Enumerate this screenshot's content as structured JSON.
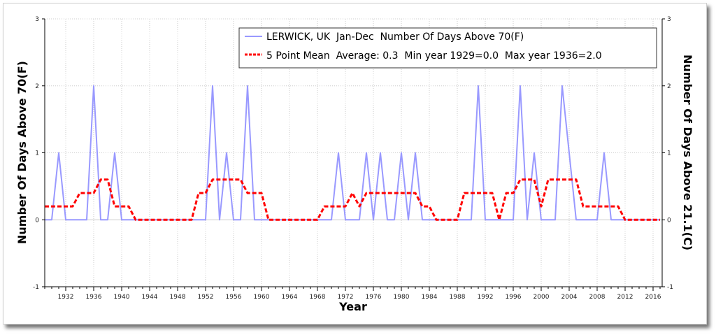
{
  "chart_data": {
    "type": "line",
    "xlabel": "Year",
    "ylabel": "Number Of Days Above 70(F)",
    "ylabel_right": "Number Of Days Above 21.1(C)",
    "xlim": [
      1929,
      2017.3
    ],
    "ylim": [
      -1,
      3
    ],
    "yticks": [
      "-1",
      "0",
      "1",
      "2",
      "3"
    ],
    "xticks": [
      "1932",
      "1936",
      "1940",
      "1944",
      "1948",
      "1952",
      "1956",
      "1960",
      "1964",
      "1968",
      "1972",
      "1976",
      "1980",
      "1984",
      "1988",
      "1992",
      "1996",
      "2000",
      "2004",
      "2008",
      "2012",
      "2016"
    ],
    "grid": true,
    "legend_position": "top-right",
    "x_start": 1929,
    "series": [
      {
        "name": "LERWICK, UK  Jan-Dec  Number Of Days Above 70(F)",
        "color": "#9999ff",
        "style": "solid",
        "values": [
          0,
          0,
          1,
          0,
          0,
          0,
          0,
          2,
          0,
          0,
          1,
          0,
          0,
          0,
          0,
          0,
          0,
          0,
          0,
          0,
          0,
          0,
          0,
          0,
          2,
          0,
          1,
          0,
          0,
          2,
          0,
          0,
          0,
          0,
          0,
          0,
          0,
          0,
          0,
          0,
          0,
          0,
          1,
          0,
          0,
          0,
          1,
          0,
          1,
          0,
          0,
          1,
          0,
          1,
          0,
          0,
          0,
          0,
          0,
          0,
          0,
          0,
          2,
          0,
          0,
          0,
          0,
          0,
          2,
          0,
          1,
          0,
          0,
          0,
          2,
          1,
          0,
          0,
          0,
          0,
          1,
          0,
          0,
          0,
          0,
          0,
          0,
          0,
          0
        ]
      },
      {
        "name": "5 Point Mean  Average: 0.3  Min year 1929=0.0  Max year 1936=2.0",
        "color": "#ff0000",
        "style": "dashed",
        "values": [
          0.2,
          0.2,
          0.2,
          0.2,
          0.2,
          0.4,
          0.4,
          0.4,
          0.6,
          0.6,
          0.2,
          0.2,
          0.2,
          0,
          0,
          0,
          0,
          0,
          0,
          0,
          0,
          0,
          0.4,
          0.4,
          0.6,
          0.6,
          0.6,
          0.6,
          0.6,
          0.4,
          0.4,
          0.4,
          0,
          0,
          0,
          0,
          0,
          0,
          0,
          0,
          0.2,
          0.2,
          0.2,
          0.2,
          0.4,
          0.2,
          0.4,
          0.4,
          0.4,
          0.4,
          0.4,
          0.4,
          0.4,
          0.4,
          0.2,
          0.2,
          0,
          0,
          0,
          0,
          0.4,
          0.4,
          0.4,
          0.4,
          0.4,
          0,
          0.4,
          0.4,
          0.6,
          0.6,
          0.6,
          0.2,
          0.6,
          0.6,
          0.6,
          0.6,
          0.6,
          0.2,
          0.2,
          0.2,
          0.2,
          0.2,
          0.2,
          0,
          0,
          0,
          0,
          0,
          0
        ]
      }
    ]
  }
}
